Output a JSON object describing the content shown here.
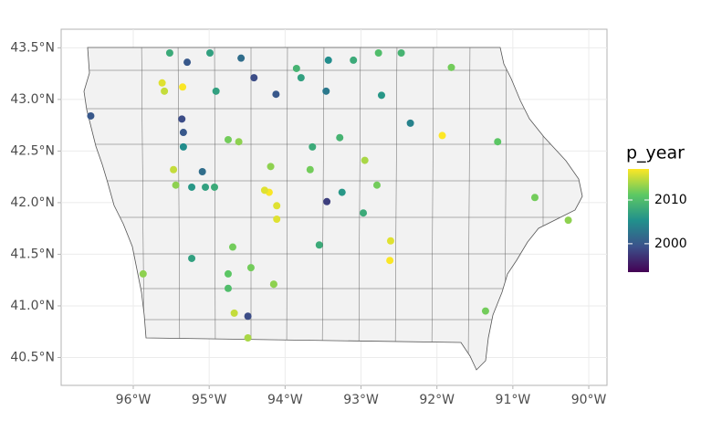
{
  "chart_data": {
    "type": "scatter",
    "legend_title": "p_year",
    "xlim": [
      -96.95,
      -89.76
    ],
    "ylim": [
      40.23,
      43.68
    ],
    "xticks": [
      {
        "value": -96,
        "label": "96°W"
      },
      {
        "value": -95,
        "label": "95°W"
      },
      {
        "value": -94,
        "label": "94°W"
      },
      {
        "value": -93,
        "label": "93°W"
      },
      {
        "value": -92,
        "label": "92°W"
      },
      {
        "value": -91,
        "label": "91°W"
      },
      {
        "value": -90,
        "label": "90°W"
      }
    ],
    "yticks": [
      {
        "value": 40.5,
        "label": "40.5°N"
      },
      {
        "value": 41.0,
        "label": "41.0°N"
      },
      {
        "value": 41.5,
        "label": "41.5°N"
      },
      {
        "value": 42.0,
        "label": "42.0°N"
      },
      {
        "value": 42.5,
        "label": "42.5°N"
      },
      {
        "value": 43.0,
        "label": "43.0°N"
      },
      {
        "value": 43.5,
        "label": "43.5°N"
      }
    ],
    "grid": true,
    "palette": [
      "#440154",
      "#3b528b",
      "#21908c",
      "#5dc863",
      "#fde725"
    ],
    "color_lim": [
      1993.5,
      2017.1
    ],
    "color_ticks": [
      2000,
      2010
    ],
    "x": [
      -95.52,
      -95.29,
      -94.99,
      -95.59,
      -95.62,
      -95.35,
      -94.91,
      -95.36,
      -95.34,
      -95.34,
      -94.75,
      -94.61,
      -95.47,
      -95.44,
      -95.05,
      -94.93,
      -95.23,
      -94.69,
      -94.75,
      -94.75,
      -95.23,
      -94.67,
      -94.49,
      -94.15,
      -94.15,
      -94.21,
      -94.27,
      -94.19,
      -93.85,
      -93.79,
      -93.46,
      -93.43,
      -93.64,
      -93.28,
      -93.25,
      -93.45,
      -92.95,
      -92.79,
      -92.97,
      -92.77,
      -92.47,
      -93.1,
      -92.73,
      -92.62,
      -92.61,
      -92.35,
      -91.81,
      -91.93,
      -91.2,
      -90.71,
      -90.27,
      -96.56,
      -95.87,
      -94.11,
      -94.11,
      -93.55,
      -93.67,
      -94.45,
      -94.49,
      -95.09,
      -94.58,
      -94.41,
      -94.12,
      -91.36
    ],
    "y": [
      43.45,
      43.36,
      43.45,
      43.08,
      43.16,
      43.12,
      43.08,
      42.81,
      42.68,
      42.54,
      42.61,
      42.59,
      42.32,
      42.17,
      42.15,
      42.15,
      42.15,
      41.57,
      41.31,
      41.17,
      41.46,
      40.93,
      40.9,
      41.21,
      41.21,
      42.1,
      42.12,
      42.35,
      43.3,
      43.21,
      43.08,
      43.38,
      42.54,
      42.63,
      42.1,
      42.01,
      42.41,
      42.17,
      41.9,
      43.45,
      43.45,
      43.38,
      43.04,
      41.44,
      41.63,
      42.77,
      43.31,
      42.65,
      42.59,
      42.05,
      41.83,
      42.84,
      41.31,
      41.97,
      41.84,
      41.59,
      42.32,
      41.37,
      40.69,
      42.3,
      43.4,
      43.21,
      43.05,
      40.95
    ],
    "color_values": [
      2008,
      2000,
      2007,
      2015,
      2016,
      2017,
      2007,
      1999,
      2000,
      2005,
      2012,
      2013,
      2015,
      2013,
      2007,
      2008,
      2006,
      2012,
      2011,
      2010,
      2007,
      2015,
      1999,
      2013,
      2013,
      2017,
      2016,
      2013,
      2009,
      2007,
      2003,
      2005,
      2008,
      2009,
      2006,
      1998,
      2014,
      2012,
      2008,
      2010,
      2009,
      2008,
      2006,
      2017,
      2016,
      2004,
      2012,
      2018,
      2011,
      2012,
      2013,
      2000,
      2013,
      2016,
      2016,
      2008,
      2012,
      2012,
      2014,
      2002,
      2002,
      1999,
      2000,
      2012
    ]
  }
}
